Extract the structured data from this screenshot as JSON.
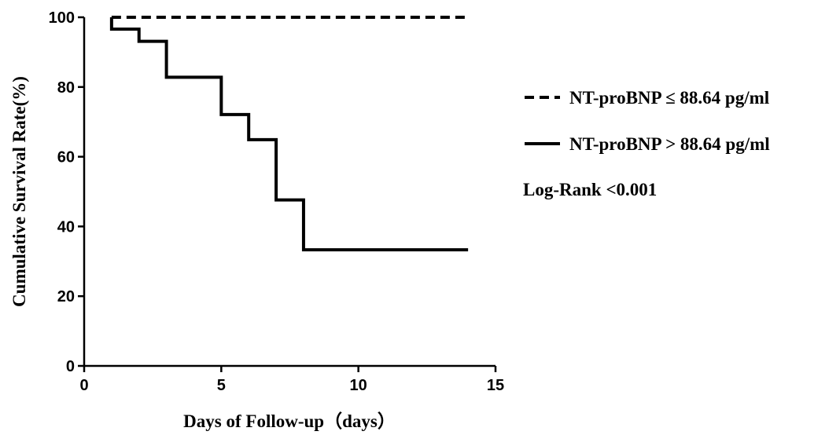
{
  "chart_data": {
    "type": "line",
    "xlabel": "Days of Follow-up（days）",
    "ylabel": "Cumulative Survival Rate(%)",
    "xlim": [
      0,
      15
    ],
    "ylim": [
      0,
      100
    ],
    "x_ticks": [
      0,
      5,
      10,
      15
    ],
    "y_ticks": [
      0,
      20,
      40,
      60,
      80,
      100
    ],
    "grid": false,
    "legend_position": "right",
    "series": [
      {
        "name": "NT-proBNP ≤ 88.64 pg/ml",
        "style": "dashed",
        "color": "#000000",
        "step": true,
        "x": [
          1,
          14
        ],
        "y": [
          100,
          100
        ]
      },
      {
        "name": "NT-proBNP > 88.64 pg/ml",
        "style": "solid",
        "color": "#000000",
        "step": true,
        "x": [
          1,
          1,
          2,
          3,
          5,
          6,
          7,
          8,
          14
        ],
        "y": [
          100,
          96.6,
          93.1,
          82.8,
          72.1,
          64.9,
          47.6,
          33.3,
          33.3
        ]
      }
    ],
    "annotations": [
      "Log-Rank <0.001"
    ]
  }
}
